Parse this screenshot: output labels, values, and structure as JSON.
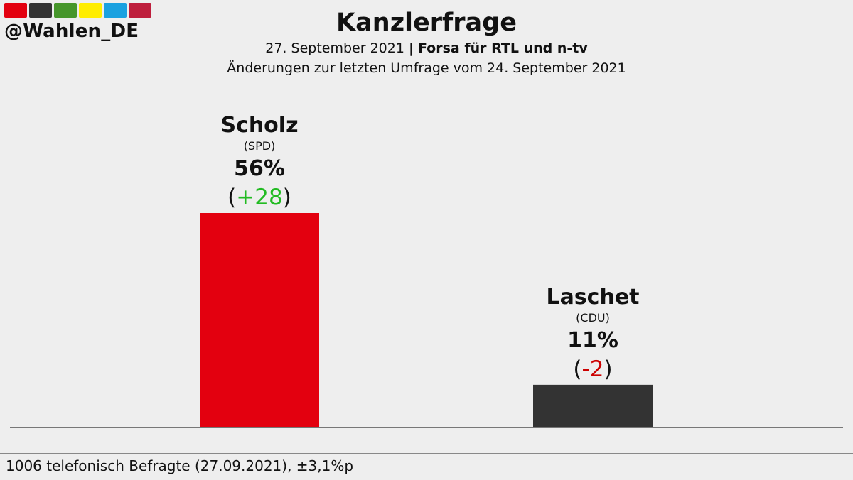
{
  "brand": {
    "handle": "@Wahlen_DE",
    "swatch_colors": [
      "#e3000f",
      "#333333",
      "#46962b",
      "#ffed00",
      "#1aa1e0",
      "#be1e3c"
    ]
  },
  "header": {
    "title": "Kanzlerfrage",
    "date": "27. September 2021",
    "separator": "|",
    "source": "Forsa für RTL und n-tv",
    "changes_note": "Änderungen zur letzten Umfrage vom 24. September 2021"
  },
  "chart_data": {
    "type": "bar",
    "categories": [
      "Scholz",
      "Laschet"
    ],
    "parties": [
      "(SPD)",
      "(CDU)"
    ],
    "values": [
      56,
      11
    ],
    "value_labels": [
      "56%",
      "11%"
    ],
    "changes": [
      "+28",
      "-2"
    ],
    "change_colors": [
      "#22bb22",
      "#cc0000"
    ],
    "bar_colors": [
      "#e3000f",
      "#333333"
    ],
    "ylim": [
      0,
      56
    ]
  },
  "footer": {
    "note": "1006 telefonisch Befragte (27.09.2021), ±3,1%p"
  }
}
